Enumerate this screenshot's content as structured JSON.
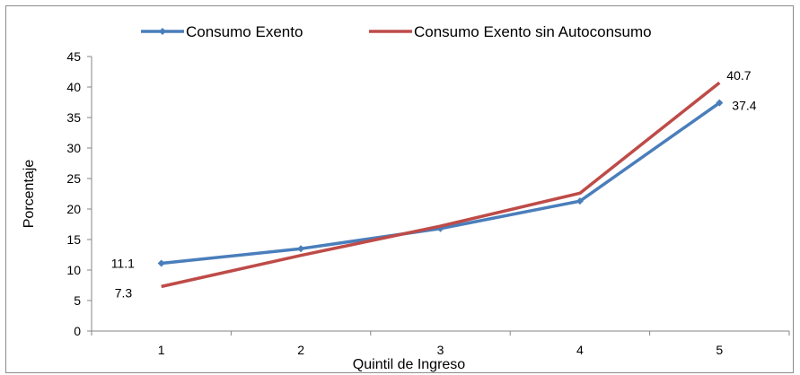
{
  "chart_data": {
    "type": "line",
    "title": "",
    "xlabel": "Quintil de Ingreso",
    "ylabel": "Porcentaje",
    "categories": [
      "1",
      "2",
      "3",
      "4",
      "5"
    ],
    "ylim": [
      0,
      45
    ],
    "yticks": [
      "0",
      "5",
      "10",
      "15",
      "20",
      "25",
      "30",
      "35",
      "40",
      "45"
    ],
    "grid": false,
    "legend_position": "top",
    "series": [
      {
        "name": "Consumo Exento",
        "color": "#4a7ebb",
        "marker": "diamond",
        "values": [
          11.1,
          13.5,
          16.8,
          21.3,
          37.4
        ],
        "labels": [
          {
            "index": 0,
            "text": "11.1"
          },
          {
            "index": 4,
            "text": "37.4"
          }
        ]
      },
      {
        "name": "Consumo Exento sin Autoconsumo",
        "color": "#be4b48",
        "marker": "none",
        "values": [
          7.3,
          12.4,
          17.2,
          22.6,
          40.7
        ],
        "labels": [
          {
            "index": 0,
            "text": "7.3"
          },
          {
            "index": 4,
            "text": "40.7"
          }
        ]
      }
    ]
  }
}
